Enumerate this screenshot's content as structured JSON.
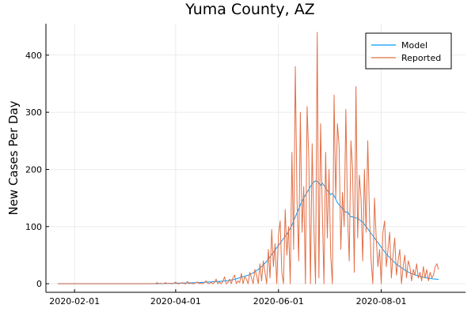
{
  "chart_data": {
    "type": "line",
    "title": "Yuma County, AZ",
    "xlabel": "",
    "ylabel": "New Cases Per Day",
    "x_start": "2020-01-22",
    "x_end": "2020-09-10",
    "xlim": [
      "2020-01-15",
      "2020-09-20"
    ],
    "ylim": [
      -15,
      455
    ],
    "xticks": [
      "2020-02-01",
      "2020-04-01",
      "2020-06-01",
      "2020-08-01"
    ],
    "yticks": [
      0,
      100,
      200,
      300,
      400
    ],
    "grid": true,
    "legend_position": "top-right",
    "series": [
      {
        "name": "Model",
        "color": "#009AFA",
        "values": [
          0,
          0,
          0,
          0,
          0,
          0,
          0,
          0,
          0,
          0,
          0,
          0,
          0,
          0,
          0,
          0,
          0,
          0,
          0,
          0,
          0,
          0,
          0,
          0,
          0,
          0,
          0,
          0,
          0,
          0,
          0,
          0,
          0,
          0,
          0,
          0,
          0,
          0,
          0,
          0,
          0,
          0,
          0,
          0,
          0,
          0,
          0,
          0,
          0,
          0,
          0,
          0,
          0,
          0,
          0,
          0,
          0,
          0,
          0,
          0.1,
          0.1,
          0.2,
          0.2,
          0.3,
          0.3,
          0.4,
          0.5,
          0.5,
          0.6,
          0.7,
          0.8,
          0.9,
          1,
          1,
          1.1,
          1.2,
          1.3,
          1.4,
          1.5,
          1.6,
          1.7,
          1.8,
          1.9,
          2,
          2.1,
          2.3,
          2.5,
          2.6,
          2.8,
          3,
          3.2,
          3.3,
          3.5,
          3.6,
          3.8,
          3.9,
          4.1,
          4.3,
          4.5,
          4.7,
          5,
          5.4,
          5.9,
          6.4,
          7.1,
          7.8,
          8.6,
          9.5,
          10.5,
          11.4,
          12.2,
          13,
          14,
          15,
          16,
          17.5,
          19,
          21,
          23,
          25,
          27.5,
          30,
          33,
          36,
          39,
          43,
          47,
          51,
          55,
          59,
          63,
          67,
          71,
          75,
          79,
          83,
          87,
          92,
          97,
          103,
          110,
          117,
          124,
          131,
          138,
          145,
          150,
          155,
          160,
          165,
          170,
          175,
          178,
          180,
          179,
          176,
          172,
          176,
          172,
          168,
          163,
          160,
          156,
          158,
          154,
          148,
          142,
          138,
          135,
          132,
          128,
          125,
          126,
          121,
          117,
          117,
          116,
          115,
          115,
          112,
          110,
          108,
          104,
          100,
          96,
          92,
          88,
          84,
          80,
          76,
          72,
          68,
          64,
          60,
          56,
          52,
          49,
          46,
          43,
          40,
          37,
          34.5,
          32,
          30,
          28,
          26,
          24,
          22,
          20.5,
          19,
          17.8,
          16.5,
          15.5,
          14.5,
          13.5,
          12.8,
          12,
          11.4,
          10.8,
          10.3,
          9.8,
          9.3,
          8.9,
          8.5,
          8.2,
          7.9,
          7.6
        ]
      },
      {
        "name": "Reported",
        "color": "#E26F46",
        "values": [
          0,
          0,
          0,
          0,
          0,
          0,
          0,
          0,
          0,
          0,
          0,
          0,
          0,
          0,
          0,
          0,
          0,
          0,
          0,
          0,
          0,
          0,
          0,
          0,
          0,
          0,
          0,
          0,
          0,
          0,
          0,
          0,
          0,
          0,
          0,
          0,
          0,
          0,
          0,
          0,
          0,
          0,
          0,
          0,
          0,
          0,
          0,
          0,
          0,
          0,
          0,
          0,
          0,
          0,
          0,
          0,
          0,
          0,
          0,
          2,
          0,
          1,
          0,
          0,
          2,
          0,
          1,
          0,
          0,
          1,
          3,
          0,
          0,
          1,
          2,
          0,
          0,
          4,
          0,
          1,
          0,
          0,
          2,
          3,
          0,
          1,
          0,
          2,
          5,
          1,
          0,
          3,
          0,
          2,
          8,
          0,
          3,
          0,
          4,
          12,
          0,
          2,
          8,
          0,
          10,
          15,
          0,
          5,
          2,
          18,
          0,
          12,
          8,
          0,
          20,
          10,
          0,
          25,
          15,
          0,
          35,
          5,
          40,
          20,
          0,
          60,
          10,
          95,
          30,
          70,
          0,
          85,
          110,
          20,
          0,
          130,
          50,
          100,
          0,
          230,
          60,
          380,
          150,
          40,
          300,
          90,
          170,
          0,
          310,
          220,
          0,
          245,
          100,
          0,
          440,
          10,
          280,
          130,
          0,
          230,
          80,
          200,
          50,
          0,
          330,
          150,
          280,
          240,
          60,
          160,
          100,
          305,
          120,
          40,
          250,
          200,
          20,
          345,
          80,
          190,
          150,
          40,
          200,
          90,
          250,
          120,
          40,
          0,
          150,
          80,
          30,
          60,
          0,
          90,
          110,
          30,
          60,
          90,
          10,
          50,
          80,
          15,
          40,
          60,
          0,
          30,
          50,
          10,
          40,
          30,
          5,
          25,
          15,
          35,
          10,
          20,
          5,
          30,
          10,
          25,
          5,
          20,
          10,
          15,
          30,
          35,
          25
        ]
      }
    ]
  }
}
